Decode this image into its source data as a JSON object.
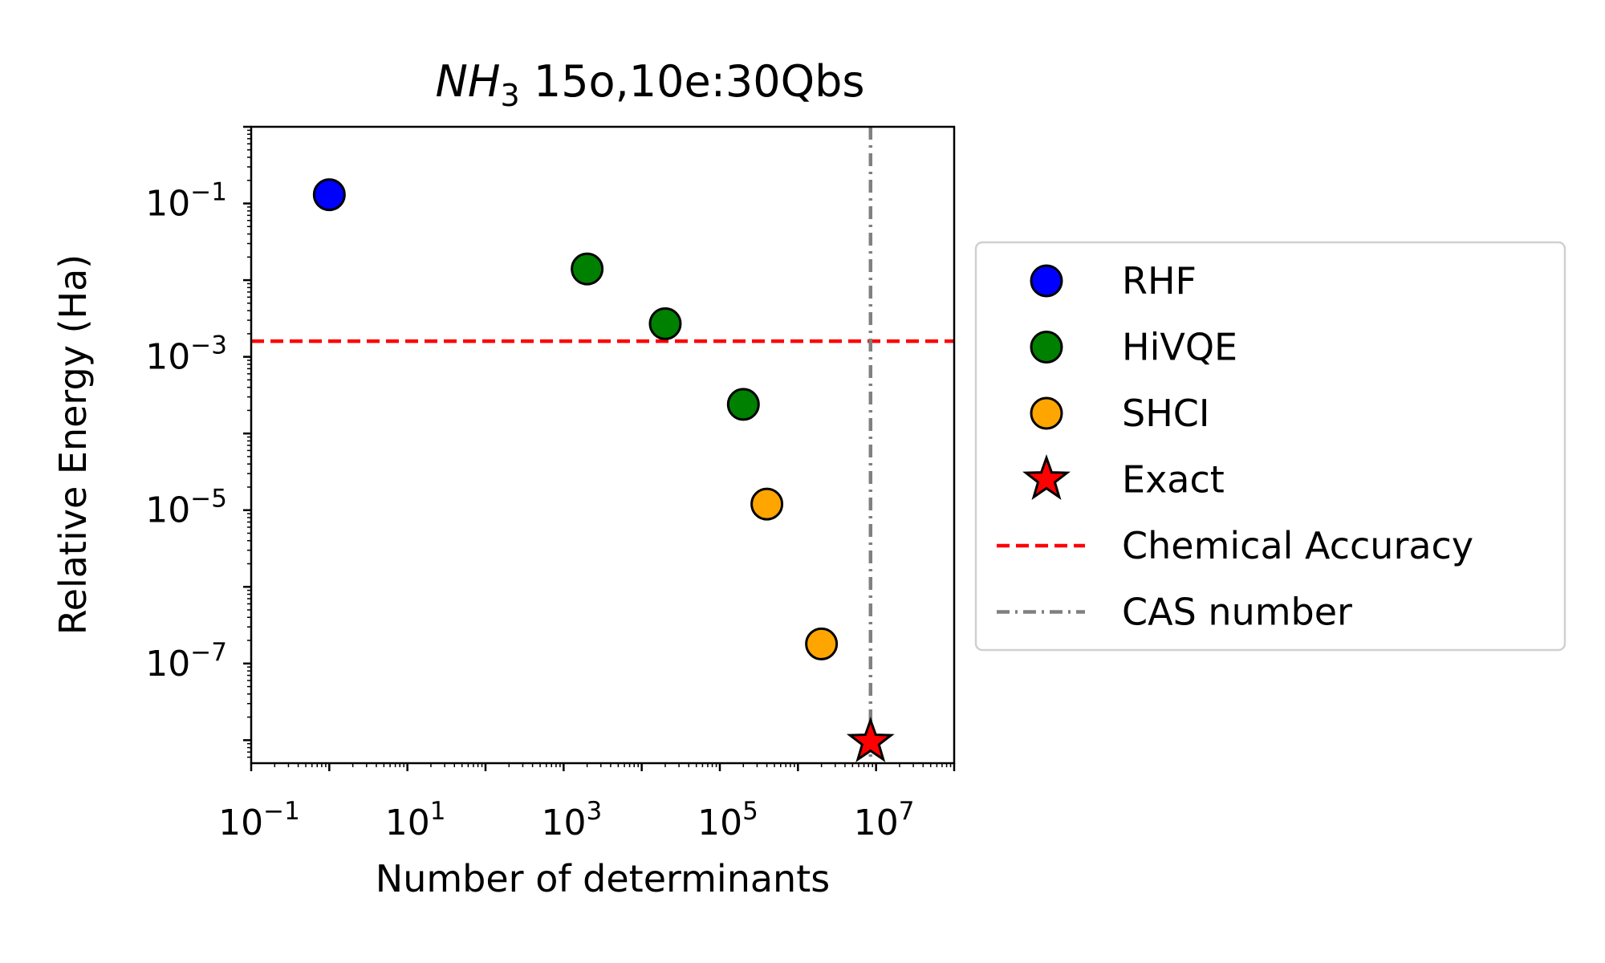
{
  "chart_data": {
    "type": "scatter",
    "title_mol": "NH",
    "title_sub": "3",
    "title_rest": " 15o,10e:30Qbs",
    "xlabel": "Number of determinants",
    "ylabel": "Relative Energy (Ha)",
    "xscale": "log",
    "yscale": "log",
    "xlim_log10": [
      -1,
      8
    ],
    "ylim_log10": [
      -8.3,
      0
    ],
    "x_tick_exponents": [
      -1,
      1,
      3,
      5,
      7
    ],
    "y_tick_exponents": [
      -1,
      -3,
      -5,
      -7
    ],
    "x_tick_labels": [
      {
        "base": "10",
        "exp": "−1"
      },
      {
        "base": "10",
        "exp": "1"
      },
      {
        "base": "10",
        "exp": "3"
      },
      {
        "base": "10",
        "exp": "5"
      },
      {
        "base": "10",
        "exp": "7"
      }
    ],
    "y_tick_labels": [
      {
        "base": "10",
        "exp": "−1"
      },
      {
        "base": "10",
        "exp": "−3"
      },
      {
        "base": "10",
        "exp": "−5"
      },
      {
        "base": "10",
        "exp": "−7"
      }
    ],
    "series": [
      {
        "name": "RHF",
        "color": "#0000ff",
        "marker": "circle",
        "points": [
          {
            "x": 1,
            "y": 0.13
          }
        ]
      },
      {
        "name": "HiVQE",
        "color": "#008000",
        "marker": "circle",
        "points": [
          {
            "x": 2000,
            "y": 0.014
          },
          {
            "x": 20000,
            "y": 0.0027
          },
          {
            "x": 200000,
            "y": 0.00024
          }
        ]
      },
      {
        "name": "SHCI",
        "color": "#ffa500",
        "marker": "circle",
        "points": [
          {
            "x": 400000,
            "y": 1.2e-05
          },
          {
            "x": 2000000,
            "y": 1.8e-07
          }
        ]
      },
      {
        "name": "Exact",
        "color": "#ff0000",
        "marker": "star",
        "points": [
          {
            "x": 8500000,
            "y": 9.5e-09
          }
        ]
      }
    ],
    "reference_lines": [
      {
        "name": "Chemical Accuracy",
        "orientation": "horizontal",
        "value": 0.0016,
        "color": "#ff0000",
        "style": "dashed"
      },
      {
        "name": "CAS number",
        "orientation": "vertical",
        "value": 8500000,
        "color": "#808080",
        "style": "dashdot"
      }
    ],
    "legend": {
      "placement": "outside-right",
      "entries": [
        "RHF",
        "HiVQE",
        "SHCI",
        "Exact",
        "Chemical Accuracy",
        "CAS number"
      ]
    }
  }
}
